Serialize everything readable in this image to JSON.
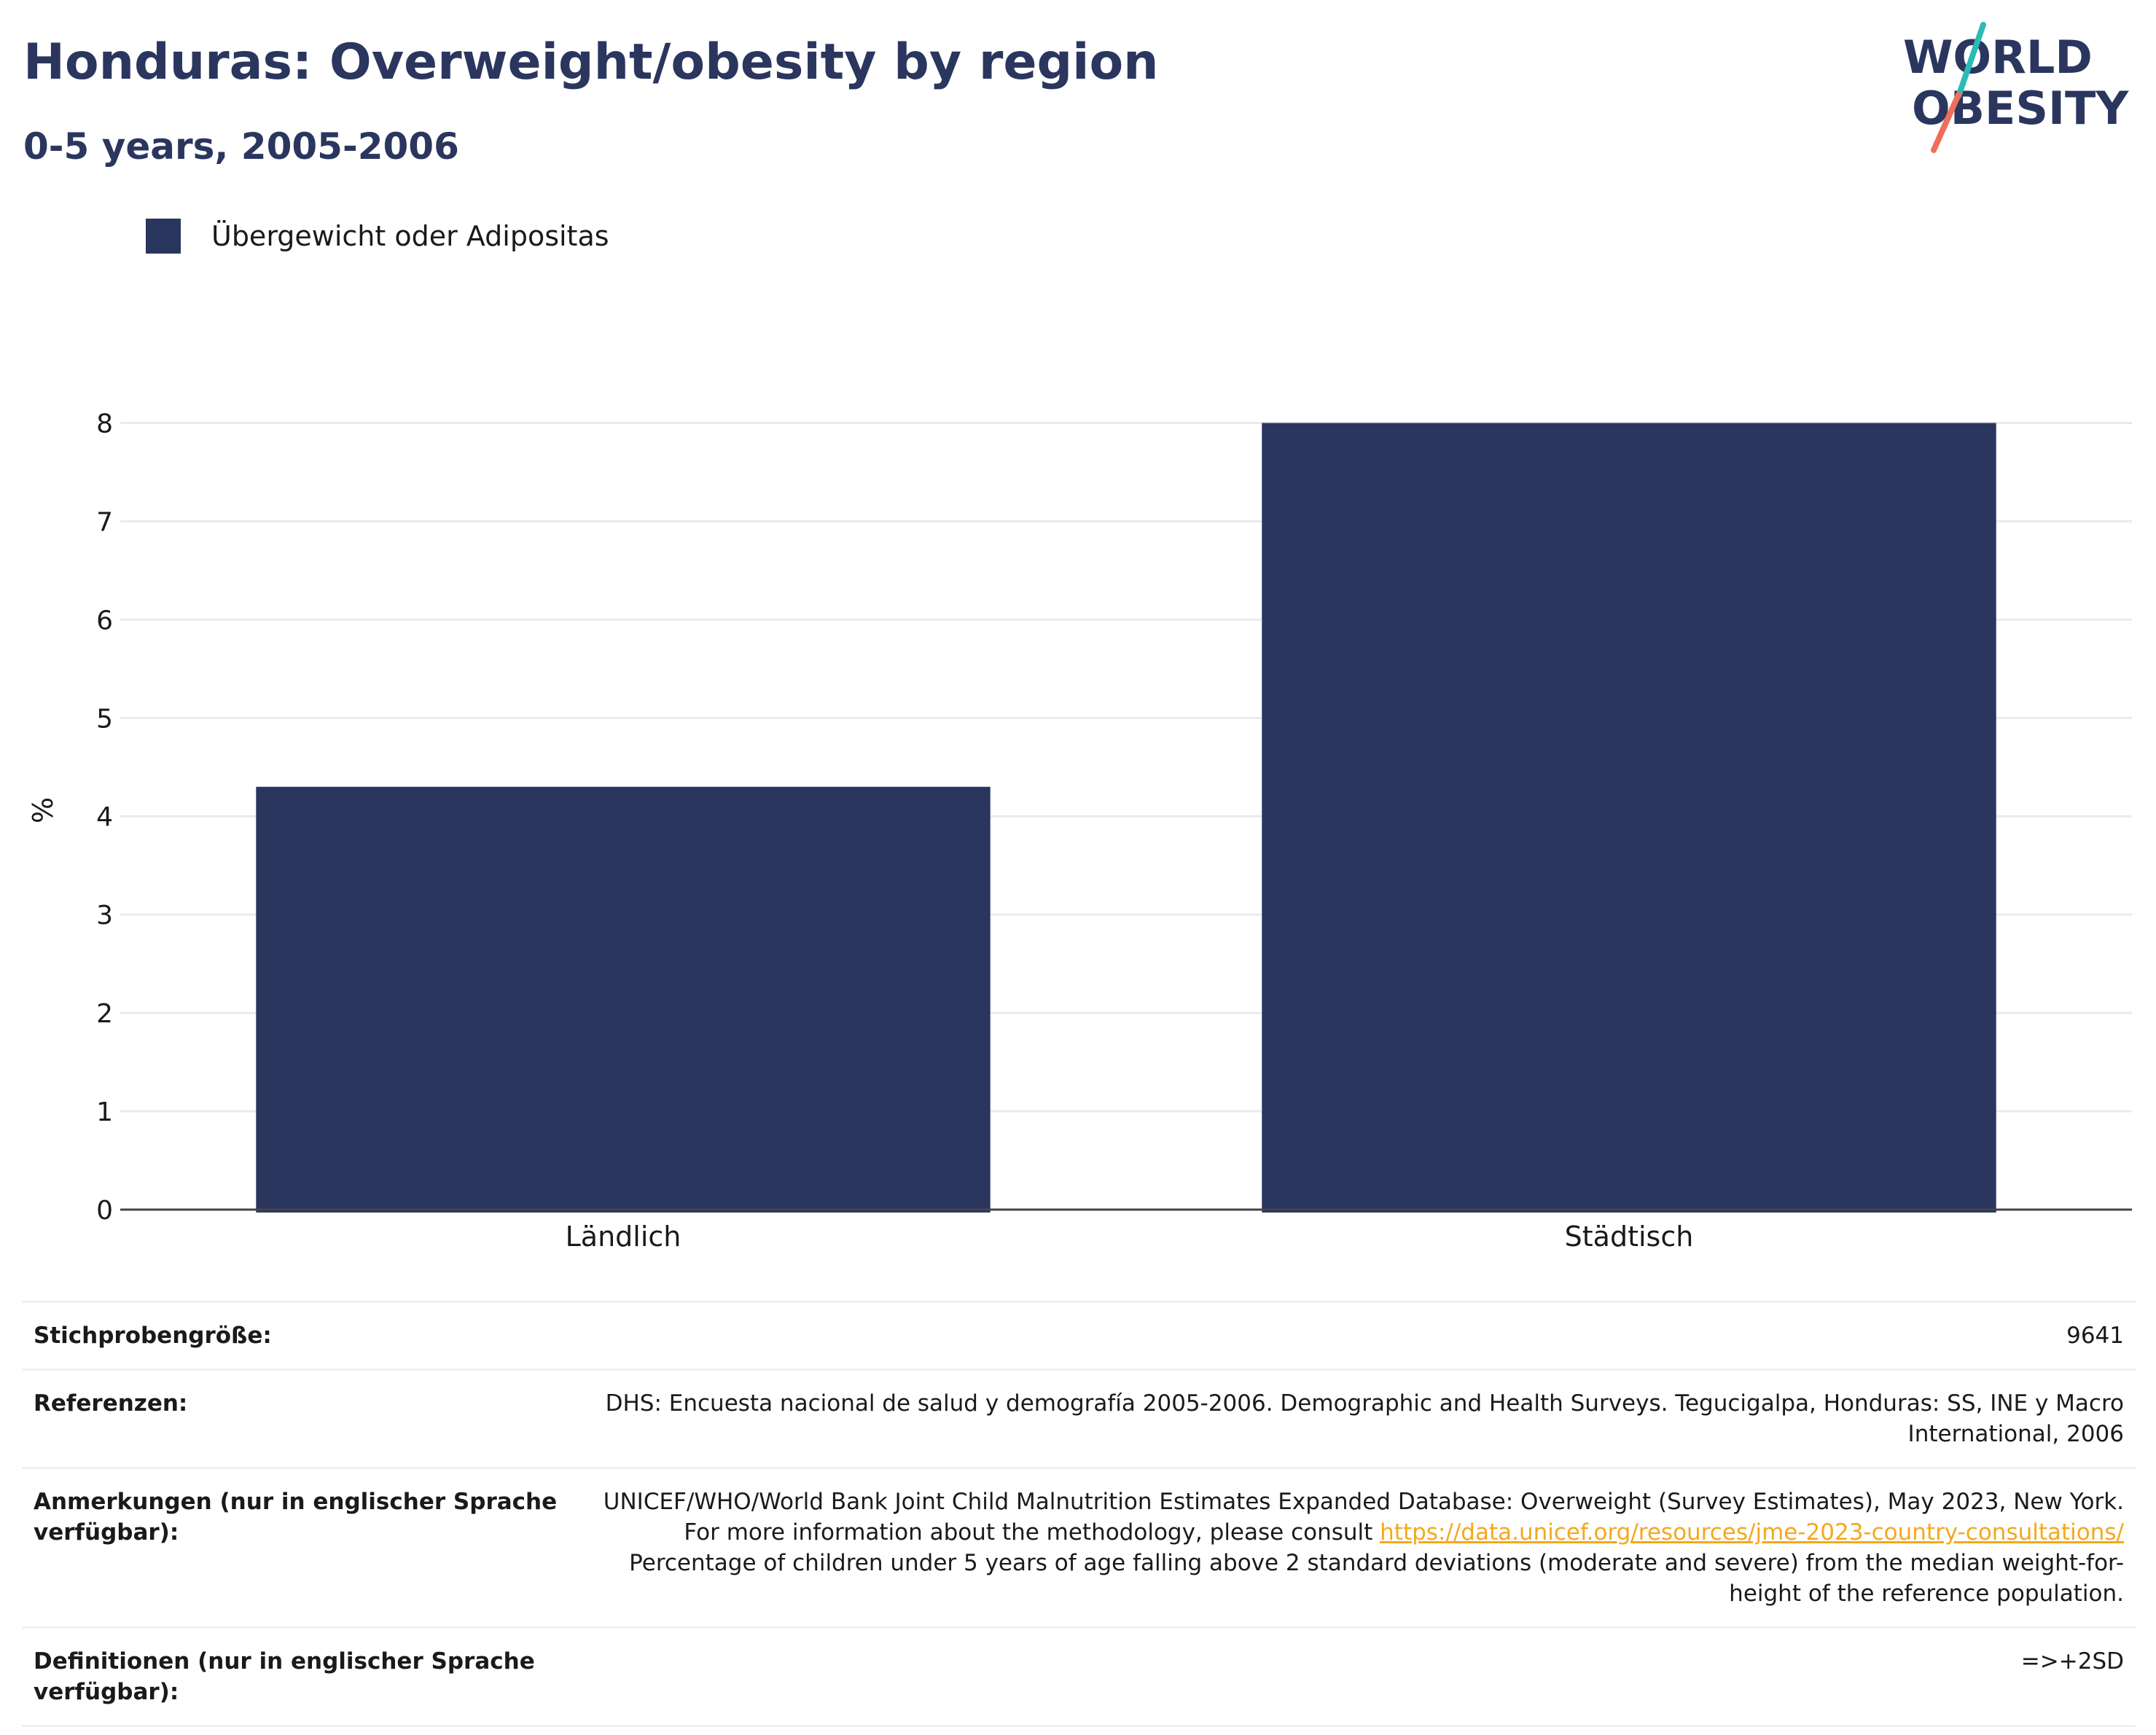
{
  "header": {
    "title": "Honduras: Overweight/obesity by region",
    "subtitle": "0-5 years, 2005-2006"
  },
  "logo": {
    "line1": "WORLD",
    "line2": "OBESITY",
    "colors": {
      "text": "#2b365f",
      "slash_top": "#2bbbb5",
      "slash_bottom": "#ef6e5a"
    }
  },
  "legend": {
    "label": "Übergewicht oder Adipositas",
    "color": "#2b365f"
  },
  "chart_data": {
    "type": "bar",
    "categories": [
      "Ländlich",
      "Städtisch"
    ],
    "series": [
      {
        "name": "Übergewicht oder Adipositas",
        "values": [
          4.3,
          8.0
        ],
        "color": "#2b365f"
      }
    ],
    "ylabel": "%",
    "xlabel": "",
    "ylim": [
      0,
      8.3
    ],
    "yticks": [
      0,
      1,
      2,
      3,
      4,
      5,
      6,
      7,
      8
    ],
    "grid": true,
    "legend_position": "top-left"
  },
  "meta": {
    "sample_size": {
      "label": "Stichprobengröße:",
      "value": "9641"
    },
    "references": {
      "label": "Referenzen:",
      "value": "DHS: Encuesta nacional de salud y demografía 2005-2006. Demographic and Health Surveys. Tegucigalpa, Honduras: SS, INE y Macro International, 2006"
    },
    "notes": {
      "label": "Anmerkungen (nur in englischer Sprache verfügbar):",
      "text_before": "UNICEF/WHO/World Bank Joint Child Malnutrition Estimates Expanded Database: Overweight (Survey Estimates), May 2023, New York. For more information about the methodology, please consult ",
      "link": "https://data.unicef.org/resources/jme-2023-country-consultations/",
      "text_after": " Percentage of children under 5 years of age falling above 2 standard deviations (moderate and severe) from the median weight-for-height of the reference population."
    },
    "definitions": {
      "label": "Definitionen (nur in englischer Sprache verfügbar):",
      "value": "=>+2SD"
    }
  }
}
